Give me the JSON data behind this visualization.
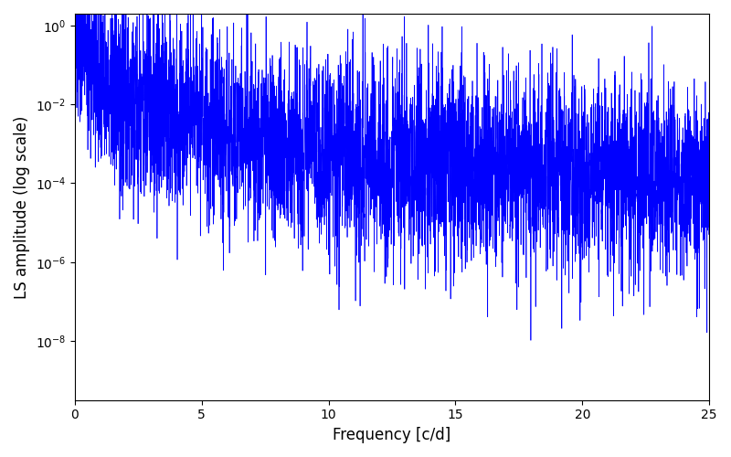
{
  "xlabel": "Frequency [c/d]",
  "ylabel": "LS amplitude (log scale)",
  "line_color": "#0000ff",
  "xlim": [
    0,
    25
  ],
  "ylim_log": [
    -9.5,
    0.3
  ],
  "seed": 137,
  "n_points": 5000,
  "freq_max": 25.0,
  "background_color": "#ffffff",
  "figsize": [
    8.0,
    5.0
  ],
  "dpi": 100
}
